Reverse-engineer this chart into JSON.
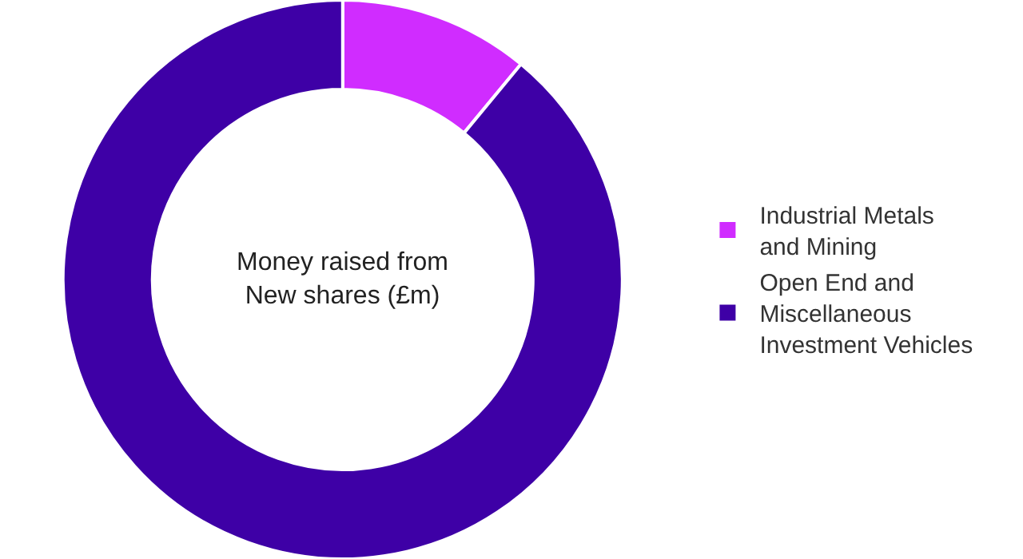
{
  "chart_data": {
    "type": "donut",
    "title": "Money raised from\nNew shares (£m)",
    "categories": [
      "Industrial Metals\nand Mining",
      "Open End and\nMiscellaneous\nInvestment Vehicles"
    ],
    "values": [
      11,
      89
    ],
    "colors": [
      "#d02cff",
      "#3e00a6"
    ],
    "legend": "right"
  }
}
